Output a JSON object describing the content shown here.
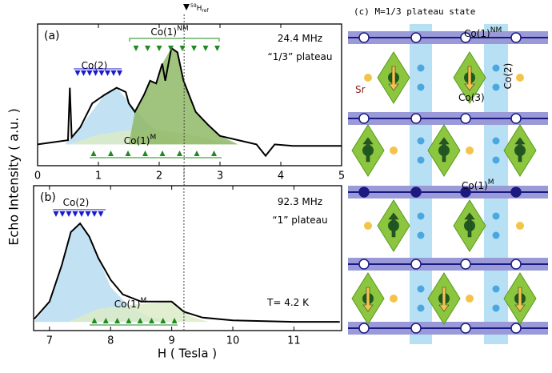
{
  "chart_data": [
    {
      "type": "line",
      "panel": "(a)",
      "xlim": [
        0,
        5
      ],
      "ylim": [
        0,
        1
      ],
      "xticks": [
        0,
        1,
        2,
        3,
        4,
        5
      ],
      "ref_line": 2.41,
      "annotations": [
        {
          "text": "24.4 MHz"
        },
        {
          "text": "“1/3” plateau"
        },
        {
          "text": "Co(2)"
        },
        {
          "text": "Co(1)",
          "sup": "NM"
        },
        {
          "text": "Co(1)",
          "sup": "M"
        }
      ],
      "series": [
        {
          "kind": "area",
          "color": "#b7dcf0",
          "x": [
            0.45,
            0.7,
            1.1,
            1.3,
            1.5,
            1.8,
            2.1,
            2.4
          ],
          "values": [
            0.15,
            0.27,
            0.5,
            0.55,
            0.45,
            0.3,
            0.2,
            0.15
          ]
        },
        {
          "kind": "area",
          "color": "#dcebc8",
          "x": [
            0.5,
            1,
            1.5,
            2,
            2.5,
            3,
            3.3
          ],
          "values": [
            0.15,
            0.22,
            0.25,
            0.25,
            0.22,
            0.17,
            0.15
          ]
        },
        {
          "kind": "area",
          "color": "#8fb866",
          "x": [
            1.5,
            1.6,
            1.75,
            1.85,
            1.95,
            2.05,
            2.2,
            2.3,
            2.4,
            2.6,
            2.8,
            3,
            3.3
          ],
          "values": [
            0.15,
            0.38,
            0.5,
            0.6,
            0.58,
            0.72,
            0.83,
            0.8,
            0.6,
            0.38,
            0.29,
            0.21,
            0.15
          ]
        },
        {
          "kind": "line",
          "color": "#000000",
          "x": [
            0,
            0.5,
            0.53,
            0.56,
            0.7,
            0.9,
            1.1,
            1.3,
            1.45,
            1.5,
            1.6,
            1.75,
            1.85,
            1.95,
            2.05,
            2.1,
            2.2,
            2.3,
            2.4,
            2.5,
            2.6,
            2.8,
            3,
            3.3,
            3.6,
            3.75,
            3.9,
            4.2,
            5
          ],
          "values": [
            0.15,
            0.18,
            0.55,
            0.2,
            0.27,
            0.44,
            0.5,
            0.55,
            0.52,
            0.44,
            0.38,
            0.5,
            0.6,
            0.58,
            0.72,
            0.6,
            0.83,
            0.8,
            0.6,
            0.49,
            0.38,
            0.29,
            0.21,
            0.18,
            0.15,
            0.07,
            0.15,
            0.14,
            0.14
          ]
        }
      ]
    },
    {
      "type": "line",
      "panel": "(b)",
      "xlim": [
        6.74,
        11.78
      ],
      "ylim": [
        0,
        1
      ],
      "xticks": [
        7,
        8,
        9,
        10,
        11
      ],
      "ref_line": 9.2,
      "annotations": [
        {
          "text": "92.3 MHz"
        },
        {
          "text": "“1” plateau"
        },
        {
          "text": "T= 4.2 K"
        },
        {
          "text": "Co(2)"
        },
        {
          "text": "Co(1)",
          "sup": "M"
        }
      ],
      "series": [
        {
          "kind": "area",
          "color": "#b7dcf0",
          "x": [
            6.75,
            7.0,
            7.2,
            7.35,
            7.5,
            7.65,
            7.8,
            8.0,
            8.3,
            8.6,
            9.0
          ],
          "values": [
            0.06,
            0.2,
            0.45,
            0.68,
            0.74,
            0.65,
            0.5,
            0.3,
            0.17,
            0.1,
            0.06
          ]
        },
        {
          "kind": "area",
          "color": "#dcebc8",
          "x": [
            7.3,
            7.8,
            8.4,
            9.0,
            9.3,
            9.6
          ],
          "values": [
            0.06,
            0.15,
            0.18,
            0.2,
            0.1,
            0.06
          ]
        },
        {
          "kind": "line",
          "color": "#000000",
          "x": [
            6.75,
            7.0,
            7.2,
            7.35,
            7.5,
            7.65,
            7.8,
            8.0,
            8.2,
            8.5,
            8.8,
            9.0,
            9.2,
            9.5,
            10,
            11,
            11.75
          ],
          "values": [
            0.08,
            0.2,
            0.45,
            0.68,
            0.74,
            0.65,
            0.5,
            0.35,
            0.25,
            0.2,
            0.2,
            0.2,
            0.13,
            0.09,
            0.07,
            0.06,
            0.06
          ]
        }
      ]
    }
  ],
  "axis_text": {
    "x_label": "H ( Tesla )",
    "y_label": "Echo Intensity ( a.u. )",
    "ref_pre": "59",
    "ref_main": "H",
    "ref_sub": "ref"
  },
  "diagram": {
    "title": "(c)  M=1/3 plateau state",
    "labels": [
      {
        "text": "Co(1)",
        "sup": "NM"
      },
      {
        "text": "Co(2)"
      },
      {
        "text": "Sr"
      },
      {
        "text": "Co(3)"
      },
      {
        "text": "Co(1)",
        "sup": "M"
      }
    ]
  }
}
